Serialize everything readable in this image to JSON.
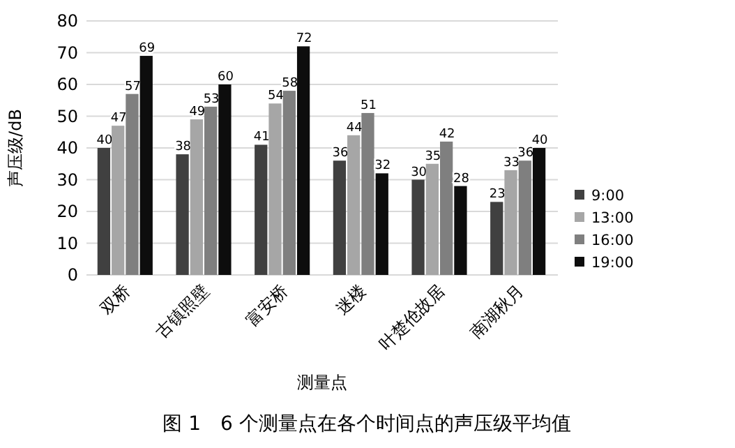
{
  "chart_data": {
    "type": "bar",
    "title": "图 1　6 个测量点在各个时间点的声压级平均值",
    "xlabel": "测量点",
    "ylabel": "声压级/dB",
    "categories": [
      "双桥",
      "古镇照壁",
      "富安桥",
      "迷楼",
      "叶楚伧故居",
      "南湖秋月"
    ],
    "series": [
      {
        "name": "9:00",
        "color": "#404040",
        "values": [
          40,
          38,
          41,
          36,
          30,
          23
        ]
      },
      {
        "name": "13:00",
        "color": "#a6a6a6",
        "values": [
          47,
          49,
          54,
          44,
          35,
          33
        ]
      },
      {
        "name": "16:00",
        "color": "#7f7f7f",
        "values": [
          57,
          53,
          58,
          51,
          42,
          36
        ]
      },
      {
        "name": "19:00",
        "color": "#0d0d0d",
        "values": [
          69,
          60,
          72,
          32,
          28,
          40
        ]
      }
    ],
    "ylim": [
      0,
      80
    ],
    "yticks": [
      0,
      10,
      20,
      30,
      40,
      50,
      60,
      70,
      80
    ],
    "grid": "y",
    "legend": "right",
    "data_labels": true
  }
}
